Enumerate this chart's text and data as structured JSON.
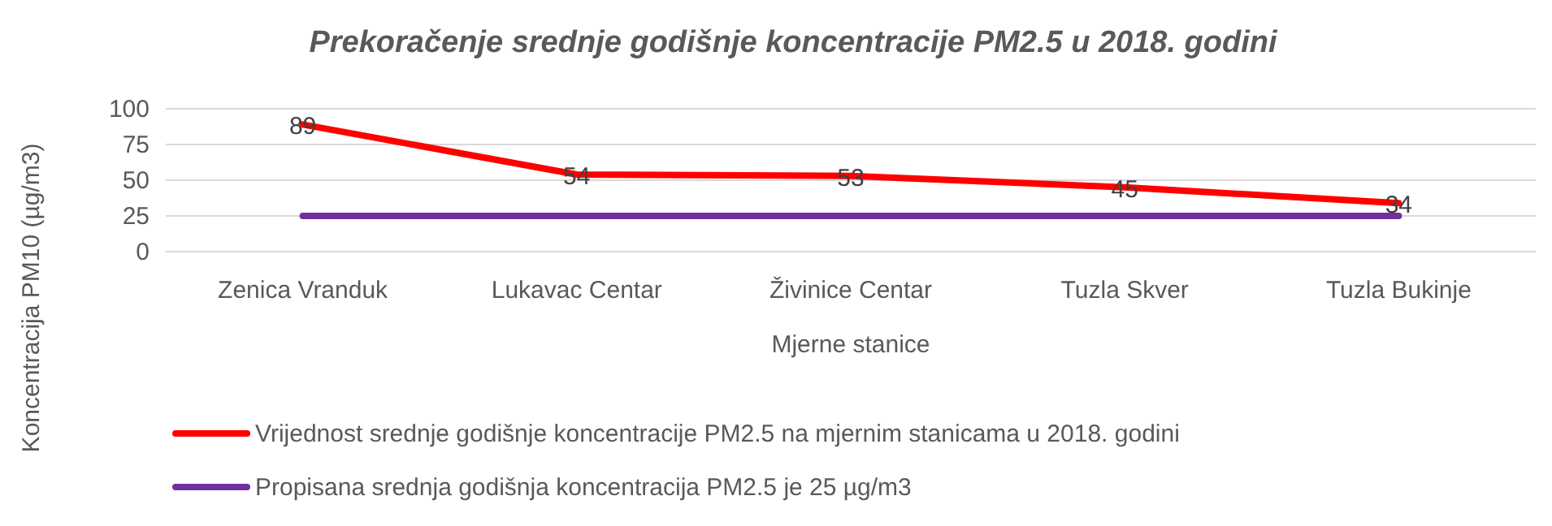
{
  "chart_data": {
    "type": "line",
    "title": "Prekoračenje srednje godišnje koncentracije PM2.5 u 2018. godini",
    "xlabel": "Mjerne stanice",
    "ylabel": "Koncentracija PM10 (µg/m3)",
    "categories": [
      "Zenica Vranduk",
      "Lukavac Centar",
      "Živinice Centar",
      "Tuzla Skver",
      "Tuzla Bukinje"
    ],
    "series": [
      {
        "name": "Vrijednost srednje godišnje koncentracije PM2.5 na mjernim stanicama u 2018. godini",
        "color": "#ff0000",
        "values": [
          89,
          54,
          53,
          45,
          34
        ],
        "value_labels": [
          "89",
          "54",
          "53",
          "45",
          "34"
        ]
      },
      {
        "name": "Propisana srednja godišnja koncentracija PM2.5 je 25 µg/m3",
        "color": "#7030a0",
        "values": [
          25,
          25,
          25,
          25,
          25
        ]
      }
    ],
    "ylim": [
      0,
      100
    ],
    "yticks": [
      0,
      25,
      50,
      75,
      100
    ],
    "grid": "y",
    "legend": "bottom",
    "marker": "none",
    "line_style": "solid"
  }
}
